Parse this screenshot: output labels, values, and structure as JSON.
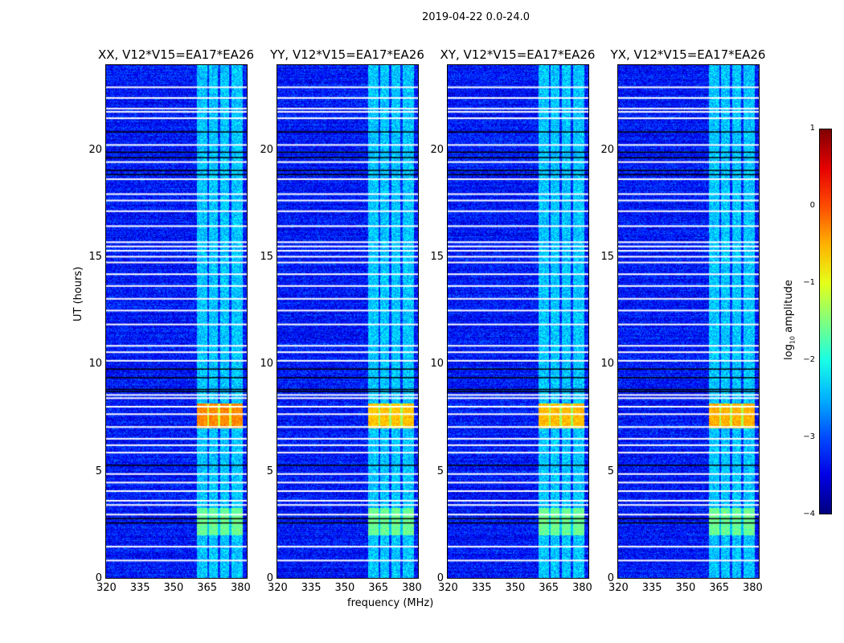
{
  "chart_data": {
    "type": "heatmap",
    "title": "2019-04-22 0.0-24.0",
    "xlabel": "frequency (MHz)",
    "ylabel": "UT (hours)",
    "xlim": [
      320,
      383.6
    ],
    "ylim": [
      0,
      24
    ],
    "xticks": [
      "320",
      "335",
      "350",
      "365",
      "380"
    ],
    "yticks": [
      "0",
      "5",
      "10",
      "15",
      "20"
    ],
    "panels": [
      {
        "title": "XX, V12*V15=EA17*EA26",
        "burst_peak": -0.3
      },
      {
        "title": "YY, V12*V15=EA17*EA26",
        "burst_peak": -0.9
      },
      {
        "title": "XY, V12*V15=EA17*EA26",
        "burst_peak": -0.8
      },
      {
        "title": "YX, V12*V15=EA17*EA26",
        "burst_peak": -0.7
      }
    ],
    "background_level": -3.3,
    "rfi_band_mhz": [
      361,
      381.5
    ],
    "rfi_band_level": -2.4,
    "subband_gaps_mhz": [
      366,
      371,
      376
    ],
    "bursts_hours": [
      [
        7.0,
        8.2,
        -0.9
      ],
      [
        2.0,
        3.3,
        -1.6
      ]
    ],
    "flagged_hours_white": [
      23.0,
      22.5,
      22.0,
      21.85,
      21.55,
      20.3,
      19.5,
      18.7,
      18.0,
      17.7,
      17.2,
      16.5,
      15.75,
      15.55,
      15.35,
      15.07,
      14.8,
      14.25,
      13.7,
      13.1,
      12.55,
      11.9,
      10.9,
      10.6,
      10.2,
      8.6,
      8.45,
      8.05,
      7.7,
      7.1,
      6.55,
      6.25,
      5.9,
      4.9,
      4.5,
      4.1,
      3.65,
      3.45,
      3.0,
      1.5,
      0.85
    ],
    "flagged_hours_black": [
      20.9,
      19.95,
      19.7,
      19.1,
      18.9,
      9.8,
      9.4,
      8.85,
      8.75,
      5.3,
      2.6,
      2.8
    ],
    "colorbar": {
      "label": "log10 amplitude",
      "label_main": "log",
      "label_sub": "10",
      "label_rest": " amplitude",
      "range": [
        -4,
        1
      ],
      "ticks": [
        "1",
        "0",
        "−1",
        "−2",
        "−3",
        "−4"
      ],
      "colormap": "jet"
    }
  }
}
